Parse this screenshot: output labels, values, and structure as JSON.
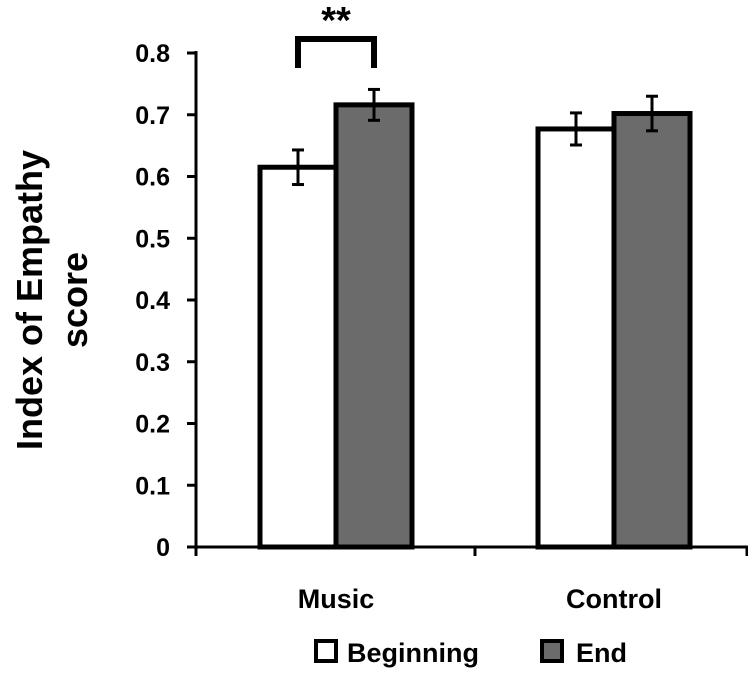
{
  "chart_data": {
    "type": "bar",
    "ylabel_lines": [
      "Index of Empathy",
      "score"
    ],
    "xlabel": "",
    "categories": [
      "Music",
      "Control"
    ],
    "series": [
      {
        "name": "Beginning",
        "values": [
          0.615,
          0.677
        ],
        "errors": [
          0.028,
          0.026
        ],
        "color": "#ffffff"
      },
      {
        "name": "End",
        "values": [
          0.716,
          0.702
        ],
        "errors": [
          0.025,
          0.028
        ],
        "color": "#6b6b6b"
      }
    ],
    "ylim": [
      0,
      0.8
    ],
    "yticks": [
      "0",
      "0.1",
      "0.2",
      "0.3",
      "0.4",
      "0.5",
      "0.6",
      "0.7",
      "0.8"
    ],
    "grid": false,
    "legend_position": "bottom",
    "annotations": [
      {
        "text": "**",
        "category": "Music",
        "between": [
          "Beginning",
          "End"
        ]
      }
    ]
  }
}
